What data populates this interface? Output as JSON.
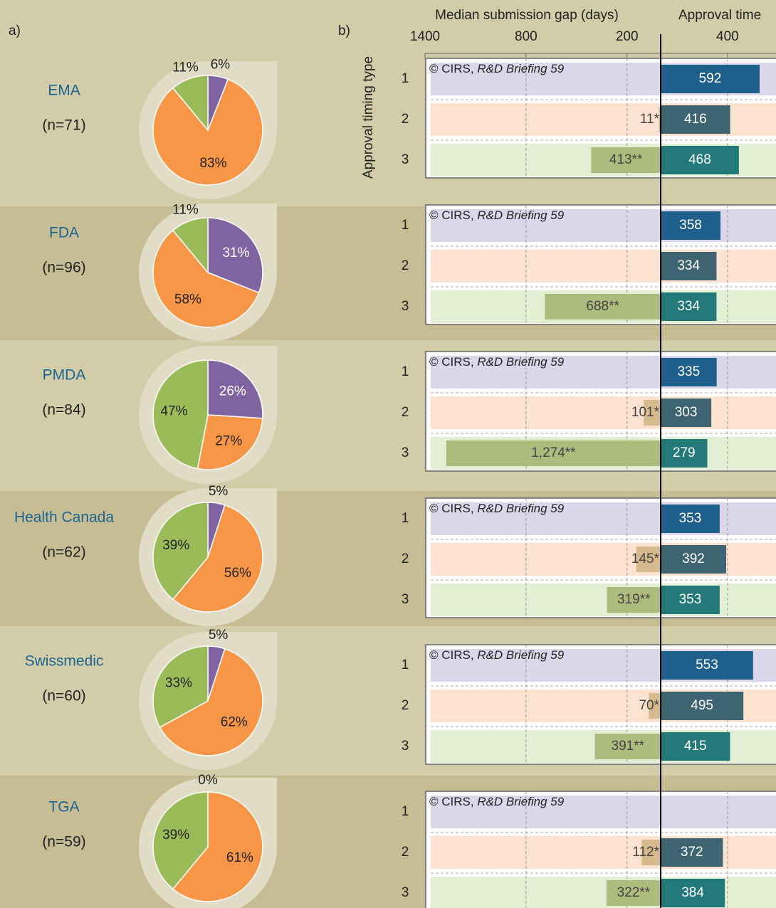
{
  "chart_data": [
    {
      "type": "pie",
      "label": "a)",
      "categories": [
        "EMA",
        "FDA",
        "PMDA",
        "Health Canada",
        "Swissmedic",
        "TGA"
      ],
      "subtitles": [
        "(n=71)",
        "(n=96)",
        "(n=84)",
        "(n=62)",
        "(n=60)",
        "(n=59)"
      ],
      "colors": [
        "#8064a2",
        "#f79646",
        "#9bbb59"
      ],
      "pies": [
        {
          "values": [
            6,
            83,
            11
          ],
          "value_labels": [
            "6%",
            "83%",
            "11%"
          ]
        },
        {
          "values": [
            31,
            58,
            11
          ],
          "value_labels": [
            "31%",
            "58%",
            "11%"
          ]
        },
        {
          "values": [
            26,
            27,
            47
          ],
          "value_labels": [
            "26%",
            "27%",
            "47%"
          ]
        },
        {
          "values": [
            5,
            56,
            39
          ],
          "value_labels": [
            "5%",
            "56%",
            "39%"
          ]
        },
        {
          "values": [
            5,
            62,
            33
          ],
          "value_labels": [
            "5%",
            "62%",
            "33%"
          ]
        },
        {
          "values": [
            0,
            61,
            39
          ],
          "value_labels": [
            "0%",
            "61%",
            "39%"
          ]
        }
      ]
    },
    {
      "type": "bar",
      "label": "b)",
      "ylabel": "Approval timing type",
      "categories": [
        "1",
        "2",
        "3"
      ],
      "source_prefix": "© CIRS, ",
      "source_title": "R&D Briefing 59",
      "xlabel": "Median submission gap (days)",
      "xlim": [
        0,
        1400
      ],
      "x_inverted": true,
      "xticks": [
        1400,
        800,
        200
      ],
      "x2label": "Approval time",
      "x2lim": [
        0,
        690
      ],
      "x2ticks": [
        400
      ],
      "grid": true,
      "row_colors": [
        "#dcd6ea",
        "#fde3cf",
        "#e3efd3"
      ],
      "gap_colors": [
        "#b9a6cf",
        "#d6b98c",
        "#adbb7c"
      ],
      "approval_colors": [
        "#1f5f8b",
        "#3d6470",
        "#23797a"
      ],
      "panels": [
        {
          "gap": {
            "values": [
              null,
              11,
              413
            ],
            "value_labels": [
              null,
              "11*",
              "413**"
            ]
          },
          "approval": {
            "values": [
              592,
              416,
              468
            ]
          }
        },
        {
          "gap": {
            "values": [
              null,
              null,
              688
            ],
            "value_labels": [
              null,
              null,
              "688**"
            ]
          },
          "approval": {
            "values": [
              358,
              334,
              334
            ]
          }
        },
        {
          "gap": {
            "values": [
              null,
              101,
              1274
            ],
            "value_labels": [
              null,
              "101*",
              "1,274**"
            ]
          },
          "approval": {
            "values": [
              335,
              303,
              279
            ]
          }
        },
        {
          "gap": {
            "values": [
              null,
              145,
              319
            ],
            "value_labels": [
              null,
              "145*",
              "319**"
            ]
          },
          "approval": {
            "values": [
              353,
              392,
              353
            ]
          }
        },
        {
          "gap": {
            "values": [
              null,
              70,
              391
            ],
            "value_labels": [
              null,
              "70*",
              "391**"
            ]
          },
          "approval": {
            "values": [
              553,
              495,
              415
            ]
          }
        },
        {
          "gap": {
            "values": [
              null,
              112,
              322
            ],
            "value_labels": [
              null,
              "112*",
              "322**"
            ]
          },
          "approval": {
            "values": [
              null,
              372,
              384
            ]
          }
        }
      ]
    }
  ]
}
